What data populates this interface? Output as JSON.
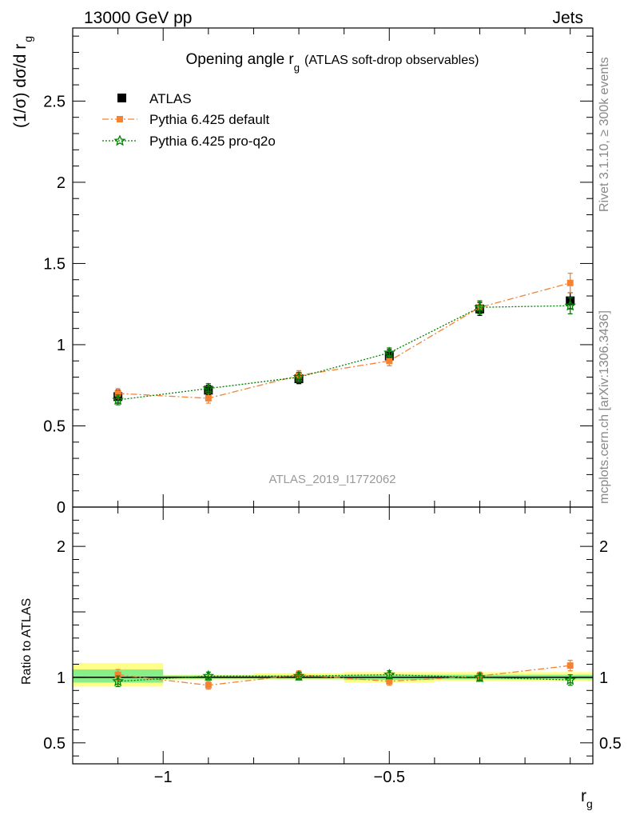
{
  "header": {
    "left": "13000 GeV pp",
    "right": "Jets"
  },
  "side_labels": {
    "rivet": "Rivet 3.1.10, ≥ 300k events",
    "mcplots": "mcplots.cern.ch [arXiv:1306.3436]"
  },
  "watermark": "ATLAS_2019_I1772062",
  "chart_data": {
    "type": "scatter",
    "title_main": "Opening angle r",
    "title_sub": "g",
    "title_rest": "(ATLAS soft-drop observables)",
    "ylabel": "(1/σ) dσ/d r",
    "ylabel_sub": "g",
    "xlabel": "r",
    "xlabel_sub": "g",
    "ratio_ylabel": "Ratio to ATLAS",
    "xlim": [
      -1.2,
      -0.05
    ],
    "ylim": [
      0,
      2.95
    ],
    "ratio_ylim": [
      0.34,
      2.3
    ],
    "x_ticks": [
      {
        "v": -1,
        "label": "−1"
      },
      {
        "v": -0.5,
        "label": "−0.5"
      }
    ],
    "y_ticks": [
      {
        "v": 0,
        "label": "0"
      },
      {
        "v": 0.5,
        "label": "0.5"
      },
      {
        "v": 1,
        "label": "1"
      },
      {
        "v": 1.5,
        "label": "1.5"
      },
      {
        "v": 2,
        "label": "2"
      },
      {
        "v": 2.5,
        "label": "2.5"
      }
    ],
    "ratio_ticks": [
      {
        "v": 0.5,
        "label": "0.5"
      },
      {
        "v": 1,
        "label": "1"
      },
      {
        "v": 2,
        "label": "2"
      }
    ],
    "bins": [
      [
        -1.2,
        -1.0
      ],
      [
        -1.0,
        -0.8
      ],
      [
        -0.8,
        -0.6
      ],
      [
        -0.6,
        -0.4
      ],
      [
        -0.4,
        -0.2
      ],
      [
        -0.2,
        -0.05
      ]
    ],
    "x": [
      -1.1,
      -0.9,
      -0.7,
      -0.5,
      -0.3,
      -0.1
    ],
    "legend": {
      "placement": "top-left"
    },
    "series": [
      {
        "name": "ATLAS",
        "color": "#000000",
        "marker": "square",
        "values": [
          0.68,
          0.72,
          0.79,
          0.93,
          1.22,
          1.27
        ],
        "errors": [
          0.04,
          0.03,
          0.03,
          0.04,
          0.04,
          0.05
        ]
      },
      {
        "name": "Pythia 6.425 default",
        "color": "#f58231",
        "marker": "square-small",
        "dash": "8,3,2,3",
        "values": [
          0.7,
          0.67,
          0.81,
          0.9,
          1.23,
          1.38
        ],
        "errors": [
          0.03,
          0.03,
          0.03,
          0.03,
          0.04,
          0.06
        ]
      },
      {
        "name": "Pythia 6.425 pro-q2o",
        "color": "#008000",
        "marker": "star",
        "dash": "2,2",
        "values": [
          0.66,
          0.73,
          0.8,
          0.95,
          1.23,
          1.24
        ],
        "errors": [
          0.03,
          0.03,
          0.03,
          0.03,
          0.04,
          0.05
        ]
      }
    ],
    "ratio_bands": {
      "yellow_color": "#ffff88",
      "green_color": "#88ee88",
      "yellow": [
        [
          0.93,
          1.11
        ],
        [
          0.98,
          1.02
        ],
        [
          0.98,
          1.03
        ],
        [
          0.96,
          1.04
        ],
        [
          0.97,
          1.04
        ],
        [
          0.97,
          1.04
        ]
      ],
      "green": [
        [
          0.96,
          1.06
        ],
        [
          0.99,
          1.015
        ],
        [
          0.99,
          1.015
        ],
        [
          0.98,
          1.02
        ],
        [
          0.985,
          1.02
        ],
        [
          0.985,
          1.02
        ]
      ]
    },
    "ratio_series": [
      {
        "name": "Pythia 6.425 default",
        "color": "#f58231",
        "values": [
          1.02,
          0.94,
          1.02,
          0.97,
          1.01,
          1.09
        ],
        "errors": [
          0.04,
          0.03,
          0.03,
          0.03,
          0.03,
          0.04
        ]
      },
      {
        "name": "Pythia 6.425 pro-q2o",
        "color": "#008000",
        "values": [
          0.97,
          1.01,
          1.01,
          1.02,
          1.0,
          0.98
        ],
        "errors": [
          0.04,
          0.03,
          0.03,
          0.03,
          0.03,
          0.04
        ]
      }
    ]
  }
}
